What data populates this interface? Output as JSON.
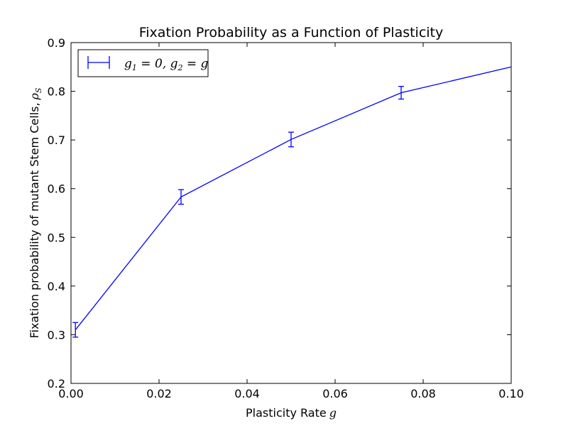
{
  "chart_data": {
    "type": "line",
    "title": "Fixation Probability as a Function of Plasticity",
    "xlabel_text": "Plasticity Rate",
    "xlabel_symbol": "g",
    "ylabel_text": "Fixation probability of mutant Stem Cells,",
    "ylabel_symbol": "ρ",
    "ylabel_symbol_sub": "S",
    "xlim": [
      0,
      0.1
    ],
    "ylim": [
      0.2,
      0.9
    ],
    "xticks": [
      0.0,
      0.02,
      0.04,
      0.06,
      0.08,
      0.1
    ],
    "xtick_labels": [
      "0.00",
      "0.02",
      "0.04",
      "0.06",
      "0.08",
      "0.10"
    ],
    "yticks": [
      0.2,
      0.3,
      0.4,
      0.5,
      0.6,
      0.7,
      0.8,
      0.9
    ],
    "ytick_labels": [
      "0.2",
      "0.3",
      "0.4",
      "0.5",
      "0.6",
      "0.7",
      "0.8",
      "0.9"
    ],
    "grid": false,
    "legend_position": "top-left",
    "legend_parts": [
      "g",
      "1",
      " = 0, ",
      "g",
      "2",
      " = ",
      "g"
    ],
    "series": [
      {
        "color": "#0000ff",
        "x": [
          0.001,
          0.025,
          0.05,
          0.075,
          0.1
        ],
        "y": [
          0.31,
          0.583,
          0.701,
          0.797,
          0.85
        ],
        "err": [
          0.015,
          0.015,
          0.015,
          0.013,
          0.0
        ]
      }
    ]
  }
}
